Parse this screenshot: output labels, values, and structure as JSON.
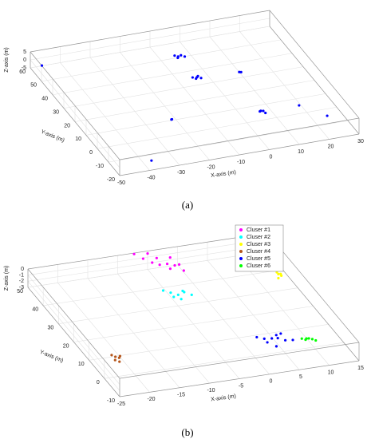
{
  "chart_data": [
    {
      "type": "scatter3d",
      "panel_label": "(a)",
      "xlabel": "X-axis (m)",
      "ylabel": "Y-axis (m)",
      "zlabel": "Z-axis (m)",
      "xlim": [
        -50,
        30
      ],
      "ylim": [
        -20,
        60
      ],
      "zlim": [
        -5,
        5
      ],
      "xticks": [
        -50,
        -40,
        -30,
        -20,
        -10,
        0,
        10,
        20,
        30
      ],
      "yticks": [
        -20,
        -10,
        0,
        10,
        20,
        30,
        40,
        50,
        60
      ],
      "zticks": [
        -5,
        0,
        5
      ],
      "grid": true,
      "series": [
        {
          "color": "#0000ff",
          "x": [
            -7,
            -6,
            -5,
            -4,
            -6.5,
            -5.5,
            -7,
            -6,
            -5,
            -4.5,
            8.1,
            8.5,
            5.5,
            5,
            6,
            4.5,
            17.5,
            23.2,
            -23.3,
            -23,
            -48,
            -39
          ],
          "y": [
            46,
            45.5,
            45.7,
            45,
            44.5,
            30,
            29.9,
            29.5,
            30.5,
            29,
            28.6,
            28,
            0.1,
            1,
            -0.5,
            0.5,
            0.2,
            -9.7,
            5.2,
            5.5,
            55,
            -19
          ],
          "z": [
            0.5,
            0,
            0.3,
            -0.2,
            0.2,
            0,
            0.4,
            -0.3,
            0.1,
            0,
            0,
            0.3,
            0.5,
            0,
            -0.4,
            0.2,
            0,
            0,
            0.2,
            0,
            0,
            0
          ]
        }
      ]
    },
    {
      "type": "scatter3d",
      "panel_label": "(b)",
      "xlabel": "X-axis (m)",
      "ylabel": "Y-axis (m)",
      "zlabel": "Z-axis (m)",
      "xlim": [
        -25,
        15
      ],
      "ylim": [
        -10,
        50
      ],
      "zlim": [
        -3,
        0
      ],
      "xticks": [
        -25,
        -20,
        -15,
        -10,
        -5,
        0,
        5,
        10,
        15
      ],
      "yticks": [
        -10,
        0,
        10,
        20,
        30,
        40,
        50
      ],
      "zticks": [
        -3,
        -2,
        -1,
        0
      ],
      "grid": true,
      "legend": "upper right",
      "series": [
        {
          "name": "Cluser #1",
          "color": "#ff00ff",
          "x": [
            -7,
            -6,
            -5,
            -4,
            -3,
            -2,
            -1,
            -3,
            -4,
            -2,
            -5,
            -1
          ],
          "y": [
            51,
            49,
            47,
            46,
            45,
            44,
            45,
            43,
            48,
            47,
            50,
            42
          ],
          "z": [
            -0.5,
            -0.8,
            -1,
            -1.2,
            -0.9,
            -1,
            -1.3,
            -1.1,
            -0.7,
            -0.6,
            -0.4,
            -1.4
          ]
        },
        {
          "name": "Cluser #2",
          "color": "#00ffff",
          "x": [
            -7,
            -6,
            -5,
            -4,
            -6,
            -5,
            -4,
            -3
          ],
          "y": [
            32,
            31,
            30,
            31,
            29,
            28,
            30,
            29
          ],
          "z": [
            -0.8,
            -1,
            -1.2,
            -1,
            -1.1,
            -1.3,
            -0.9,
            -1.2
          ]
        },
        {
          "name": "Cluser #3",
          "color": "#ffff00",
          "x": [
            12,
            12.5,
            12.3,
            12.7,
            12.1
          ],
          "y": [
            32,
            31.5,
            32.2,
            31.8,
            31.4
          ],
          "z": [
            -0.6,
            -0.8,
            -1,
            -1.2,
            -1.4
          ]
        },
        {
          "name": "Cluser #4",
          "color": "#b5561b",
          "x": [
            -22,
            -21.5,
            -21,
            -21.8,
            -21.2,
            -20.8
          ],
          "y": [
            7,
            6.5,
            6,
            5.5,
            5,
            6.2
          ],
          "z": [
            -1.7,
            -1.9,
            -2,
            -2.1,
            -2.3,
            -1.8
          ]
        },
        {
          "name": "Cluser #5",
          "color": "#0000ff",
          "x": [
            2,
            3,
            4,
            5,
            6,
            7,
            4,
            5,
            6,
            3
          ],
          "y": [
            6,
            5,
            4,
            4,
            3,
            2,
            1,
            5,
            6,
            3
          ],
          "z": [
            -2,
            -2.1,
            -1.9,
            -2,
            -2.2,
            -2,
            -2.3,
            -1.8,
            -2,
            -2.1
          ]
        },
        {
          "name": "Cluser #6",
          "color": "#00ff00",
          "x": [
            8.5,
            9,
            9.5,
            10,
            10.5,
            9.2
          ],
          "y": [
            2,
            1.5,
            1.3,
            1,
            0.7,
            1.7
          ],
          "z": [
            -2,
            -2.1,
            -1.9,
            -2,
            -2.2,
            -2
          ]
        }
      ]
    }
  ]
}
